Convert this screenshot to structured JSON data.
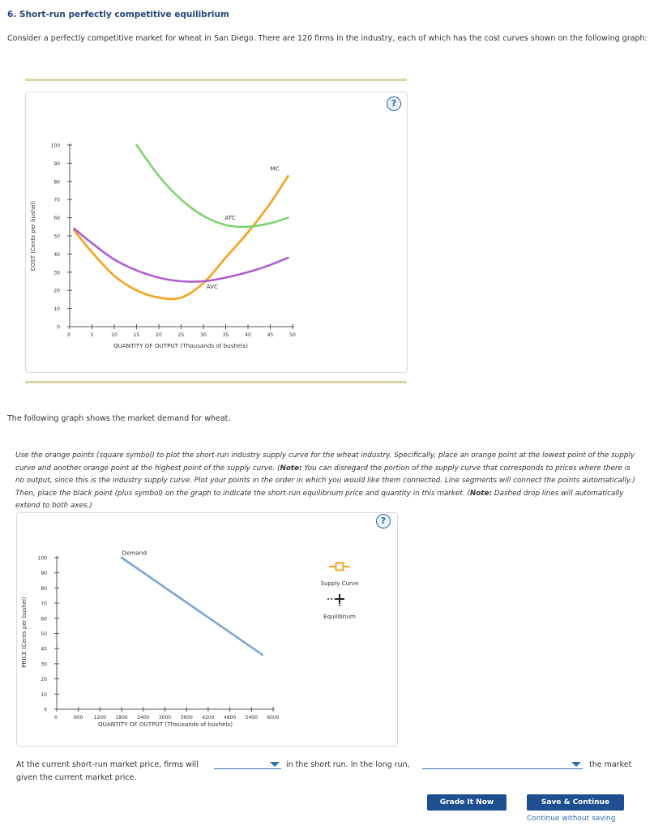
{
  "question": {
    "title": "6. Short-run perfectly competitive equilibrium",
    "intro": "Consider a perfectly competitive market for wheat in San Diego. There are 120 firms in the industry, each of which has the cost curves shown on the following graph:",
    "help_label": "?",
    "demand_intro": "The following graph shows the market demand for wheat.",
    "instructions": [
      {
        "t": "Use the orange points (square symbol) to plot the short-run industry supply curve for the wheat industry. Specifically, place an orange point at the lowest point of the supply curve and another orange point at the highest point of the supply curve. (",
        "b": false
      },
      {
        "t": "Note:",
        "b": true
      },
      {
        "t": " You can disregard the portion of the supply curve that corresponds to prices where there is no output, since this is the industry supply curve. Plot your points in the order in which you would like them connected. Line segments will connect the points automatically.) Then, place the black point (plus symbol) on the graph to indicate the short-run equilibrium price and quantity in this market. (",
        "b": false
      },
      {
        "t": "Note:",
        "b": true
      },
      {
        "t": " Dashed drop lines will automatically extend to both axes.)",
        "b": false
      }
    ],
    "sentence_part1": "At the current short-run market price, firms will",
    "sentence_part2": "in the short run. In the long run,",
    "sentence_part3": "the market",
    "sentence_part4": "given the current market price.",
    "dropdown1_value": "",
    "dropdown2_value": "",
    "buttons": {
      "grade": "Grade It Now",
      "save": "Save & Continue",
      "continue_link": "Continue without saving"
    }
  },
  "chart_data": [
    {
      "type": "line",
      "xlabel": "QUANTITY OF OUTPUT (Thousands of bushels)",
      "ylabel": "COST (Cents per bushel)",
      "xlim": [
        0,
        50
      ],
      "ylim": [
        0,
        100
      ],
      "xticks": [
        "0",
        "5",
        "10",
        "15",
        "20",
        "25",
        "30",
        "35",
        "40",
        "45",
        "50"
      ],
      "yticks": [
        "0",
        "10",
        "20",
        "30",
        "40",
        "50",
        "60",
        "70",
        "80",
        "90",
        "100"
      ],
      "series": [
        {
          "name": "MC",
          "color": "#f7a21b",
          "x": [
            1,
            5,
            10,
            15,
            20,
            25,
            30,
            35,
            40,
            45,
            49
          ],
          "y": [
            53,
            41,
            28,
            20,
            16,
            16,
            24,
            38,
            52,
            68,
            83
          ]
        },
        {
          "name": "ATC",
          "color": "#7ed36f",
          "x": [
            15,
            20,
            25,
            30,
            35,
            40,
            45,
            49
          ],
          "y": [
            100,
            83,
            70,
            61,
            56,
            55,
            57,
            60
          ]
        },
        {
          "name": "AVC",
          "color": "#b05ed1",
          "x": [
            1,
            5,
            10,
            15,
            20,
            25,
            30,
            35,
            40,
            45,
            49
          ],
          "y": [
            54,
            46,
            37,
            31,
            27,
            25,
            25,
            27,
            30,
            34,
            38
          ]
        }
      ],
      "labels": [
        {
          "text": "MC",
          "x": 46,
          "y": 86
        },
        {
          "text": "ATC",
          "x": 36,
          "y": 59
        },
        {
          "text": "AVC",
          "x": 32,
          "y": 21
        }
      ]
    },
    {
      "type": "line",
      "xlabel": "QUANTITY OF OUTPUT (Thousands of bushels)",
      "ylabel": "PRICE (Cents per bushel)",
      "xlim": [
        0,
        6000
      ],
      "ylim": [
        0,
        100
      ],
      "xticks": [
        "0",
        "600",
        "1200",
        "1800",
        "2400",
        "3000",
        "3600",
        "4200",
        "4800",
        "5400",
        "6000"
      ],
      "yticks": [
        "0",
        "10",
        "20",
        "30",
        "40",
        "50",
        "60",
        "70",
        "80",
        "90",
        "100"
      ],
      "series": [
        {
          "name": "Demand",
          "color": "#7ba7d4",
          "x": [
            1800,
            5700
          ],
          "y": [
            100,
            36
          ]
        }
      ],
      "labels": [
        {
          "text": "Demand",
          "x": 2150,
          "y": 102
        }
      ],
      "legend": [
        {
          "name": "Supply Curve",
          "color": "#f7a21b",
          "symbol": "square"
        },
        {
          "name": "Equilibrium",
          "color": "#222222",
          "symbol": "plus"
        }
      ]
    }
  ]
}
